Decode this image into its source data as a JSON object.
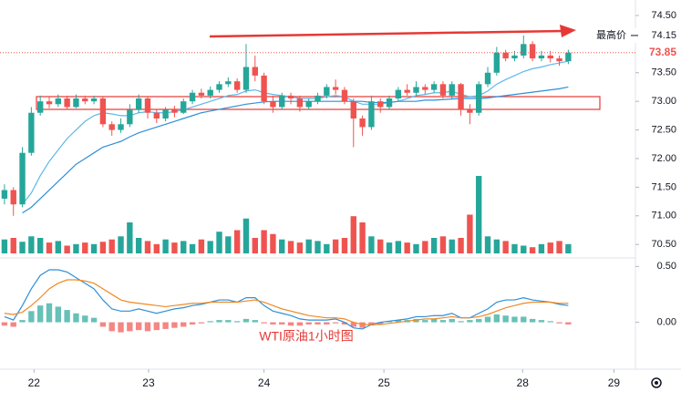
{
  "chart_data": {
    "type": "candlestick",
    "annotation": "WTI原油1小时图",
    "xlim": [
      0,
      71
    ],
    "xticks": [
      {
        "value": 3.8,
        "label": "22"
      },
      {
        "value": 16.6,
        "label": "23"
      },
      {
        "value": 29.5,
        "label": "24"
      },
      {
        "value": 42.9,
        "label": "25"
      },
      {
        "value": 58.4,
        "label": "28"
      },
      {
        "value": 68.6,
        "label": "29"
      }
    ],
    "ylim": [
      70.28,
      74.77
    ],
    "yticks": [
      {
        "value": 74.5,
        "label": "74.50"
      },
      {
        "value": 73.5,
        "label": "73.50"
      },
      {
        "value": 73,
        "label": "73.00"
      },
      {
        "value": 72.5,
        "label": "72.50"
      },
      {
        "value": 72,
        "label": "72.00"
      },
      {
        "value": 71.5,
        "label": "71.50"
      },
      {
        "value": 71,
        "label": "71.00"
      },
      {
        "value": 70.5,
        "label": "70.50"
      }
    ],
    "up_color": "#26a69a",
    "down_color": "#ef5350",
    "highest_price": {
      "label": "最高价",
      "value": 74.15
    },
    "last_price": 73.85,
    "open": [
      71.3,
      71.45,
      71.2,
      72.1,
      72.8,
      73.0,
      72.95,
      73.05,
      72.9,
      73.05,
      73.0,
      73.05,
      72.6,
      72.5,
      72.6,
      72.85,
      73.05,
      72.8,
      72.7,
      72.85,
      72.8,
      73.0,
      73.15,
      73.1,
      73.2,
      73.3,
      73.35,
      73.2,
      73.6,
      73.45,
      73.0,
      72.9,
      73.1,
      73.05,
      72.9,
      73.0,
      73.1,
      73.25,
      73.2,
      73.0,
      72.7,
      72.55,
      73.0,
      72.9,
      73.05,
      73.2,
      73.15,
      73.25,
      73.2,
      73.3,
      73.1,
      73.3,
      72.85,
      72.8,
      73.3,
      73.5,
      73.85,
      73.75,
      73.8,
      74.0,
      73.75,
      73.8,
      73.75,
      73.7
    ],
    "high": [
      71.55,
      71.5,
      72.2,
      72.9,
      73.1,
      73.08,
      73.12,
      73.1,
      73.12,
      73.1,
      73.1,
      73.08,
      72.65,
      72.7,
      72.95,
      73.12,
      73.08,
      72.85,
      72.9,
      72.92,
      73.05,
      73.2,
      73.22,
      73.26,
      73.35,
      73.42,
      73.4,
      74.0,
      73.8,
      73.5,
      73.1,
      73.15,
      73.15,
      73.1,
      73.05,
      73.15,
      73.3,
      73.38,
      73.25,
      73.05,
      72.75,
      73.1,
      73.05,
      73.1,
      73.25,
      73.3,
      73.35,
      73.3,
      73.35,
      73.35,
      73.35,
      73.32,
      72.95,
      73.35,
      73.6,
      73.95,
      73.9,
      73.88,
      74.15,
      74.05,
      73.88,
      73.88,
      73.8,
      73.9
    ],
    "low": [
      71.2,
      71.0,
      71.15,
      72.05,
      72.75,
      72.88,
      72.9,
      72.85,
      72.88,
      72.95,
      72.95,
      72.55,
      72.4,
      72.45,
      72.55,
      72.8,
      72.7,
      72.62,
      72.65,
      72.72,
      72.78,
      72.95,
      73.05,
      73.05,
      73.15,
      73.25,
      73.15,
      73.15,
      73.35,
      72.95,
      72.8,
      72.85,
      72.95,
      72.82,
      72.85,
      72.95,
      73.05,
      73.12,
      72.95,
      72.2,
      72.4,
      72.5,
      72.8,
      72.85,
      73.0,
      73.1,
      73.1,
      73.12,
      73.15,
      73.05,
      73.05,
      72.75,
      72.6,
      72.75,
      73.25,
      73.45,
      73.7,
      73.7,
      73.75,
      73.7,
      73.7,
      73.68,
      73.62,
      73.65
    ],
    "close": [
      71.45,
      71.2,
      72.1,
      72.8,
      73.0,
      72.95,
      73.05,
      72.9,
      73.05,
      73.0,
      73.05,
      72.6,
      72.5,
      72.6,
      72.85,
      73.05,
      72.8,
      72.7,
      72.85,
      72.8,
      73.0,
      73.15,
      73.1,
      73.2,
      73.3,
      73.35,
      73.2,
      73.6,
      73.45,
      73.0,
      72.9,
      73.1,
      73.05,
      72.9,
      73.0,
      73.1,
      73.25,
      73.2,
      73.0,
      72.7,
      72.55,
      73.0,
      72.9,
      73.05,
      73.2,
      73.15,
      73.25,
      73.2,
      73.3,
      73.1,
      73.3,
      72.85,
      72.8,
      73.3,
      73.5,
      73.85,
      73.75,
      73.8,
      74.0,
      73.75,
      73.8,
      73.75,
      73.7,
      73.85
    ],
    "volume_ylim": [
      0,
      100
    ],
    "volume": [
      18,
      20,
      15,
      22,
      20,
      14,
      16,
      10,
      12,
      14,
      12,
      15,
      18,
      22,
      40,
      20,
      16,
      12,
      18,
      14,
      16,
      12,
      18,
      16,
      28,
      22,
      30,
      45,
      20,
      30,
      25,
      18,
      16,
      14,
      18,
      16,
      12,
      18,
      20,
      48,
      40,
      22,
      18,
      14,
      16,
      14,
      12,
      16,
      20,
      22,
      18,
      20,
      50,
      100,
      22,
      18,
      16,
      12,
      10,
      8,
      12,
      14,
      16,
      12
    ],
    "moving_averages": [
      {
        "color": "#5fb8e8",
        "values": [
          null,
          null,
          71.2,
          71.4,
          71.7,
          71.95,
          72.15,
          72.35,
          72.5,
          72.65,
          72.75,
          72.8,
          72.78,
          72.75,
          72.75,
          72.8,
          72.82,
          72.8,
          72.8,
          72.82,
          72.85,
          72.9,
          72.95,
          73.0,
          73.05,
          73.1,
          73.12,
          73.18,
          73.2,
          73.15,
          73.12,
          73.1,
          73.08,
          73.05,
          73.05,
          73.05,
          73.08,
          73.1,
          73.08,
          73.0,
          72.95,
          72.95,
          72.95,
          72.98,
          73.0,
          73.05,
          73.1,
          73.12,
          73.15,
          73.15,
          73.18,
          73.12,
          73.08,
          73.1,
          73.18,
          73.3,
          73.38,
          73.45,
          73.52,
          73.57,
          73.6,
          73.64,
          73.67,
          73.7
        ]
      },
      {
        "color": "#2f8fd8",
        "values": [
          null,
          null,
          71.05,
          71.15,
          71.3,
          71.45,
          71.6,
          71.75,
          71.9,
          72.0,
          72.1,
          72.2,
          72.25,
          72.3,
          72.38,
          72.45,
          72.5,
          72.55,
          72.6,
          72.65,
          72.7,
          72.75,
          72.8,
          72.83,
          72.86,
          72.89,
          72.92,
          72.95,
          72.97,
          72.99,
          73.0,
          73.0,
          73.0,
          73.0,
          73.0,
          73.0,
          73.0,
          73.0,
          73.0,
          73.0,
          73.0,
          72.98,
          72.98,
          72.98,
          73.0,
          73.0,
          73.0,
          73.02,
          73.02,
          73.03,
          73.04,
          73.05,
          73.05,
          73.05,
          73.06,
          73.08,
          73.1,
          73.12,
          73.14,
          73.16,
          73.18,
          73.2,
          73.22,
          73.25
        ]
      }
    ],
    "macd": {
      "ylim": [
        -0.42,
        0.568
      ],
      "yticks": [
        {
          "value": 0.5,
          "label": "0.50"
        },
        {
          "value": 0,
          "label": "0.00"
        }
      ],
      "histogram": [
        -0.03,
        -0.04,
        0.02,
        0.1,
        0.15,
        0.17,
        0.14,
        0.11,
        0.08,
        0.06,
        0.04,
        -0.04,
        -0.08,
        -0.09,
        -0.08,
        -0.07,
        -0.08,
        -0.07,
        -0.06,
        -0.05,
        -0.04,
        -0.02,
        -0.01,
        0.01,
        0.02,
        0.02,
        0.01,
        0.03,
        0.02,
        -0.01,
        -0.02,
        -0.02,
        -0.03,
        -0.03,
        -0.02,
        -0.02,
        -0.02,
        -0.01,
        -0.02,
        -0.04,
        -0.05,
        -0.03,
        -0.02,
        0.01,
        0.02,
        0.02,
        0.03,
        0.02,
        0.03,
        0.02,
        0.03,
        0.01,
        0.02,
        0.03,
        0.05,
        0.07,
        0.06,
        0.05,
        0.05,
        0.03,
        0.02,
        0.01,
        -0.01,
        -0.02
      ],
      "macd_color": "#2f8fd8",
      "macd": [
        0.05,
        0.02,
        0.15,
        0.3,
        0.42,
        0.47,
        0.47,
        0.45,
        0.4,
        0.35,
        0.3,
        0.2,
        0.12,
        0.1,
        0.1,
        0.12,
        0.1,
        0.08,
        0.1,
        0.12,
        0.13,
        0.15,
        0.16,
        0.18,
        0.2,
        0.2,
        0.18,
        0.22,
        0.22,
        0.15,
        0.1,
        0.08,
        0.06,
        0.03,
        0.02,
        0.02,
        0.02,
        0.03,
        0.0,
        -0.05,
        -0.06,
        -0.02,
        0.0,
        0.01,
        0.02,
        0.03,
        0.05,
        0.05,
        0.06,
        0.06,
        0.08,
        0.04,
        0.04,
        0.08,
        0.12,
        0.18,
        0.2,
        0.2,
        0.22,
        0.2,
        0.19,
        0.18,
        0.16,
        0.15
      ],
      "signal_color": "#f08a24",
      "signal": [
        0.08,
        0.07,
        0.09,
        0.15,
        0.22,
        0.3,
        0.35,
        0.38,
        0.38,
        0.37,
        0.35,
        0.3,
        0.25,
        0.2,
        0.18,
        0.17,
        0.16,
        0.15,
        0.14,
        0.15,
        0.16,
        0.17,
        0.17,
        0.18,
        0.18,
        0.18,
        0.18,
        0.19,
        0.2,
        0.18,
        0.15,
        0.12,
        0.1,
        0.08,
        0.06,
        0.05,
        0.04,
        0.04,
        0.03,
        0.0,
        -0.02,
        -0.02,
        -0.02,
        -0.01,
        0.0,
        0.01,
        0.02,
        0.03,
        0.03,
        0.04,
        0.05,
        0.04,
        0.04,
        0.05,
        0.07,
        0.1,
        0.13,
        0.15,
        0.17,
        0.18,
        0.18,
        0.18,
        0.17,
        0.17
      ]
    }
  }
}
